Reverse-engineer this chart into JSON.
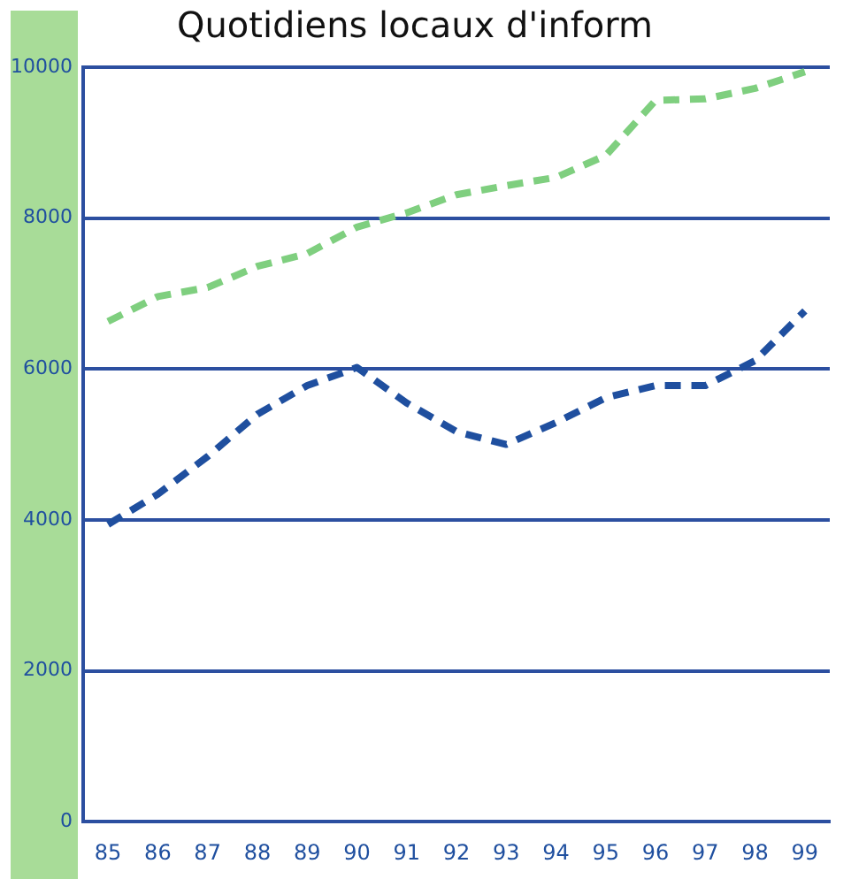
{
  "chart_data": {
    "type": "line",
    "title": "Quotidiens locaux d'inform",
    "categories": [
      "85",
      "86",
      "87",
      "88",
      "89",
      "90",
      "91",
      "92",
      "93",
      "94",
      "95",
      "96",
      "97",
      "98",
      "99"
    ],
    "series": [
      {
        "color": "#7fcf7f",
        "values": [
          6630,
          6960,
          7080,
          7360,
          7530,
          7880,
          8070,
          8310,
          8430,
          8540,
          8830,
          9560,
          9580,
          9720,
          9940
        ]
      },
      {
        "color": "#1f4f9f",
        "values": [
          3940,
          4340,
          4840,
          5400,
          5780,
          6020,
          5550,
          5170,
          5000,
          5290,
          5620,
          5780,
          5780,
          6110,
          6770
        ]
      }
    ],
    "ylim": [
      0,
      10000
    ],
    "yticks": [
      0,
      2000,
      4000,
      6000,
      8000,
      10000
    ],
    "grid": "y",
    "legend": false,
    "marker": "none",
    "line_style": "dashed"
  }
}
